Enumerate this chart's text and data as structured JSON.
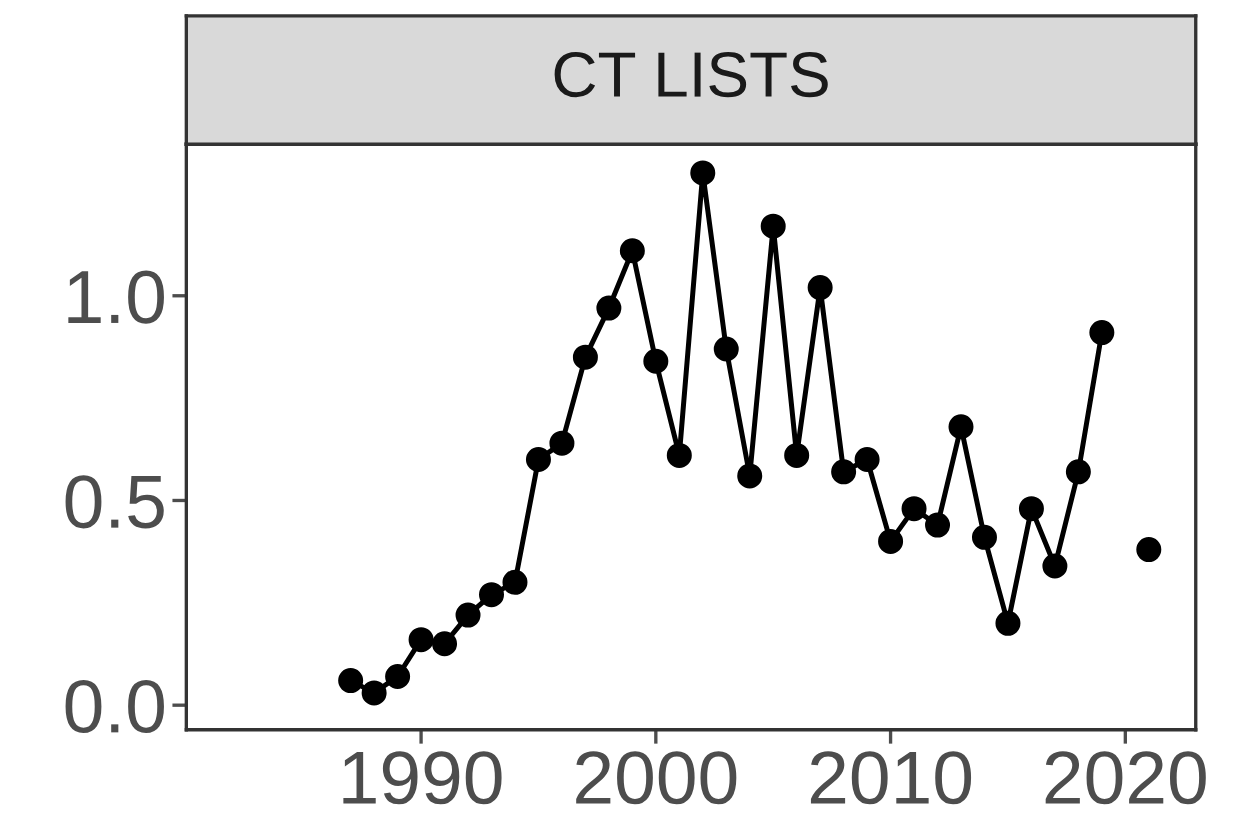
{
  "chart_data": {
    "type": "line",
    "title": "CT LISTS",
    "x": [
      1987,
      1988,
      1989,
      1990,
      1991,
      1992,
      1993,
      1994,
      1995,
      1996,
      1997,
      1998,
      1999,
      2000,
      2001,
      2002,
      2003,
      2004,
      2005,
      2006,
      2007,
      2008,
      2009,
      2010,
      2011,
      2012,
      2013,
      2014,
      2015,
      2016,
      2017,
      2018,
      2019,
      2020,
      2021
    ],
    "series": [
      {
        "color": "#000000",
        "values": [
          0.06,
          0.03,
          0.07,
          0.16,
          0.15,
          0.22,
          0.27,
          0.3,
          0.6,
          0.64,
          0.85,
          0.97,
          1.11,
          0.84,
          0.61,
          1.3,
          0.87,
          0.56,
          1.17,
          0.61,
          1.02,
          0.57,
          0.6,
          0.4,
          0.48,
          0.44,
          0.68,
          0.41,
          0.2,
          0.48,
          0.34,
          0.57,
          0.91,
          null,
          0.38
        ]
      }
    ],
    "xlim": [
      1980,
      2023
    ],
    "ylim": [
      -0.06,
      1.37
    ],
    "xticks": [
      1990,
      2000,
      2010,
      2020
    ],
    "yticks": [
      {
        "value": 0,
        "label": "0.0"
      },
      {
        "value": 0.5,
        "label": "0.5"
      },
      {
        "value": 1,
        "label": "1.0"
      }
    ],
    "grid": false,
    "legend": false,
    "marker": "circle",
    "line_style": "solid"
  }
}
